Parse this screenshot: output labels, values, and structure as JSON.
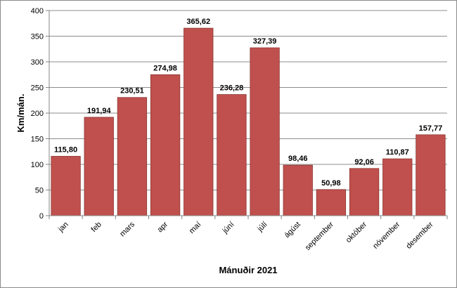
{
  "chart_data": {
    "type": "bar",
    "title": "",
    "xlabel": "Mánuðir 2021",
    "ylabel": "Km/mán.",
    "categories": [
      "jan",
      "feb",
      "mars",
      "apr",
      "maí",
      "júní",
      "júlí",
      "ágúst",
      "september",
      "október",
      "nóvember",
      "desember"
    ],
    "values": [
      115.8,
      191.94,
      230.51,
      274.98,
      365.62,
      236.28,
      327.39,
      98.46,
      50.98,
      92.06,
      110.87,
      157.77
    ],
    "value_labels": [
      "115,80",
      "191,94",
      "230,51",
      "274,98",
      "365,62",
      "236,28",
      "327,39",
      "98,46",
      "50,98",
      "92,06",
      "110,87",
      "157,77"
    ],
    "ylim": [
      0,
      400
    ],
    "yticks": [
      0,
      50,
      100,
      150,
      200,
      250,
      300,
      350,
      400
    ],
    "grid": true,
    "legend": "none",
    "bar_color": "#c0504d",
    "bar_edge_color": "#8c3836"
  }
}
